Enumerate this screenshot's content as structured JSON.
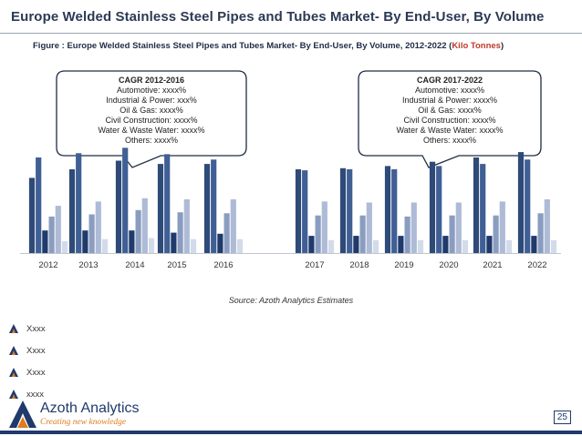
{
  "header": {
    "title": "Europe Welded Stainless Steel Pipes and Tubes Market- By End-User, By Volume",
    "figure_label": "Figure : Europe Welded Stainless Steel Pipes and Tubes Market- By End-User, By Volume, 2012-2022 (",
    "figure_unit": "Kilo Tonnes",
    "figure_close": ")"
  },
  "callouts": [
    {
      "head": "CAGR 2012-2016",
      "lines": [
        "Automotive: xxxx%",
        "Industrial & Power: xxx%",
        "Oil & Gas: xxxx%",
        "Civil Construction: xxxx%",
        "Water & Waste Water: xxxx%",
        "Others: xxxx%"
      ]
    },
    {
      "head": "CAGR 2017-2022",
      "lines": [
        "Automotive: xxxx%",
        "Industrial & Power: xxxx%",
        "Oil & Gas: xxxx%",
        "Civil Construction: xxxx%",
        "Water & Waste Water: xxxx%",
        "Others: xxxx%"
      ]
    }
  ],
  "chart_data": {
    "type": "bar",
    "title": "",
    "xlabel": "",
    "ylabel": "",
    "categories": [
      "2012",
      "2013",
      "2014",
      "2015",
      "2016",
      "2017",
      "2018",
      "2019",
      "2020",
      "2021",
      "2022"
    ],
    "ylim": [
      0,
      100
    ],
    "series": [
      {
        "name": "Automotive",
        "color": "#2e4a78",
        "values": [
          70,
          78,
          86,
          83,
          83,
          78,
          79,
          81,
          85,
          89,
          94
        ]
      },
      {
        "name": "Industrial & Power",
        "color": "#3f5f95",
        "values": [
          89,
          93,
          98,
          92,
          87,
          77,
          78,
          78,
          81,
          83,
          87
        ]
      },
      {
        "name": "Oil & Gas",
        "color": "#1f3a6b",
        "values": [
          21,
          21,
          21,
          19,
          18,
          16,
          16,
          16,
          16,
          16,
          16
        ]
      },
      {
        "name": "Civil Construction",
        "color": "#8a9dc0",
        "values": [
          34,
          36,
          40,
          38,
          37,
          35,
          35,
          34,
          35,
          35,
          37
        ]
      },
      {
        "name": "Water & Waste Water",
        "color": "#aebbd6",
        "values": [
          44,
          48,
          51,
          50,
          50,
          48,
          47,
          47,
          47,
          48,
          50
        ]
      },
      {
        "name": "Others",
        "color": "#d3dbea",
        "values": [
          11,
          13,
          14,
          13,
          13,
          12,
          12,
          12,
          12,
          12,
          12
        ]
      }
    ]
  },
  "source": "Source: Azoth Analytics Estimates",
  "bullets": [
    "Xxxx",
    "Xxxx",
    "Xxxx",
    "xxxx"
  ],
  "footer": {
    "logo_name": "Azoth Analytics",
    "logo_tagline": "Creating new knowledge",
    "page_number": "25"
  }
}
